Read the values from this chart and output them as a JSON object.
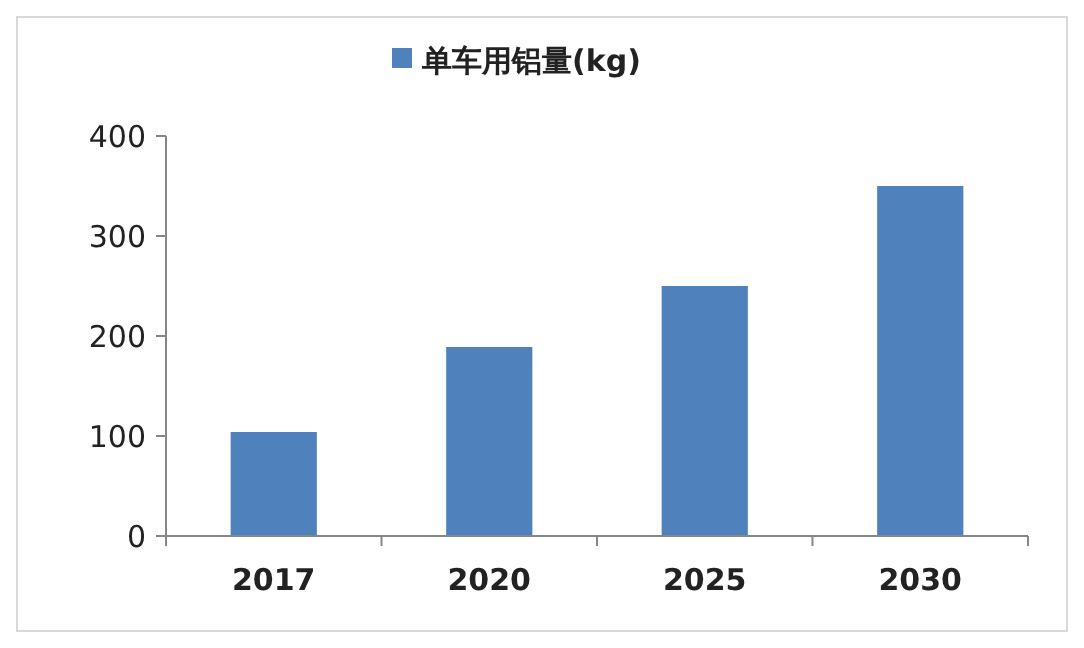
{
  "chart_data": {
    "type": "bar",
    "categories": [
      "2017",
      "2020",
      "2025",
      "2030"
    ],
    "series": [
      {
        "name": "单车用铝量(kg)",
        "color": "#4f81bd",
        "values": [
          104,
          189,
          250,
          350
        ]
      }
    ],
    "ylim": [
      0,
      400
    ],
    "yticks": [
      0,
      100,
      200,
      300,
      400
    ],
    "grid": false,
    "legend": "top"
  }
}
